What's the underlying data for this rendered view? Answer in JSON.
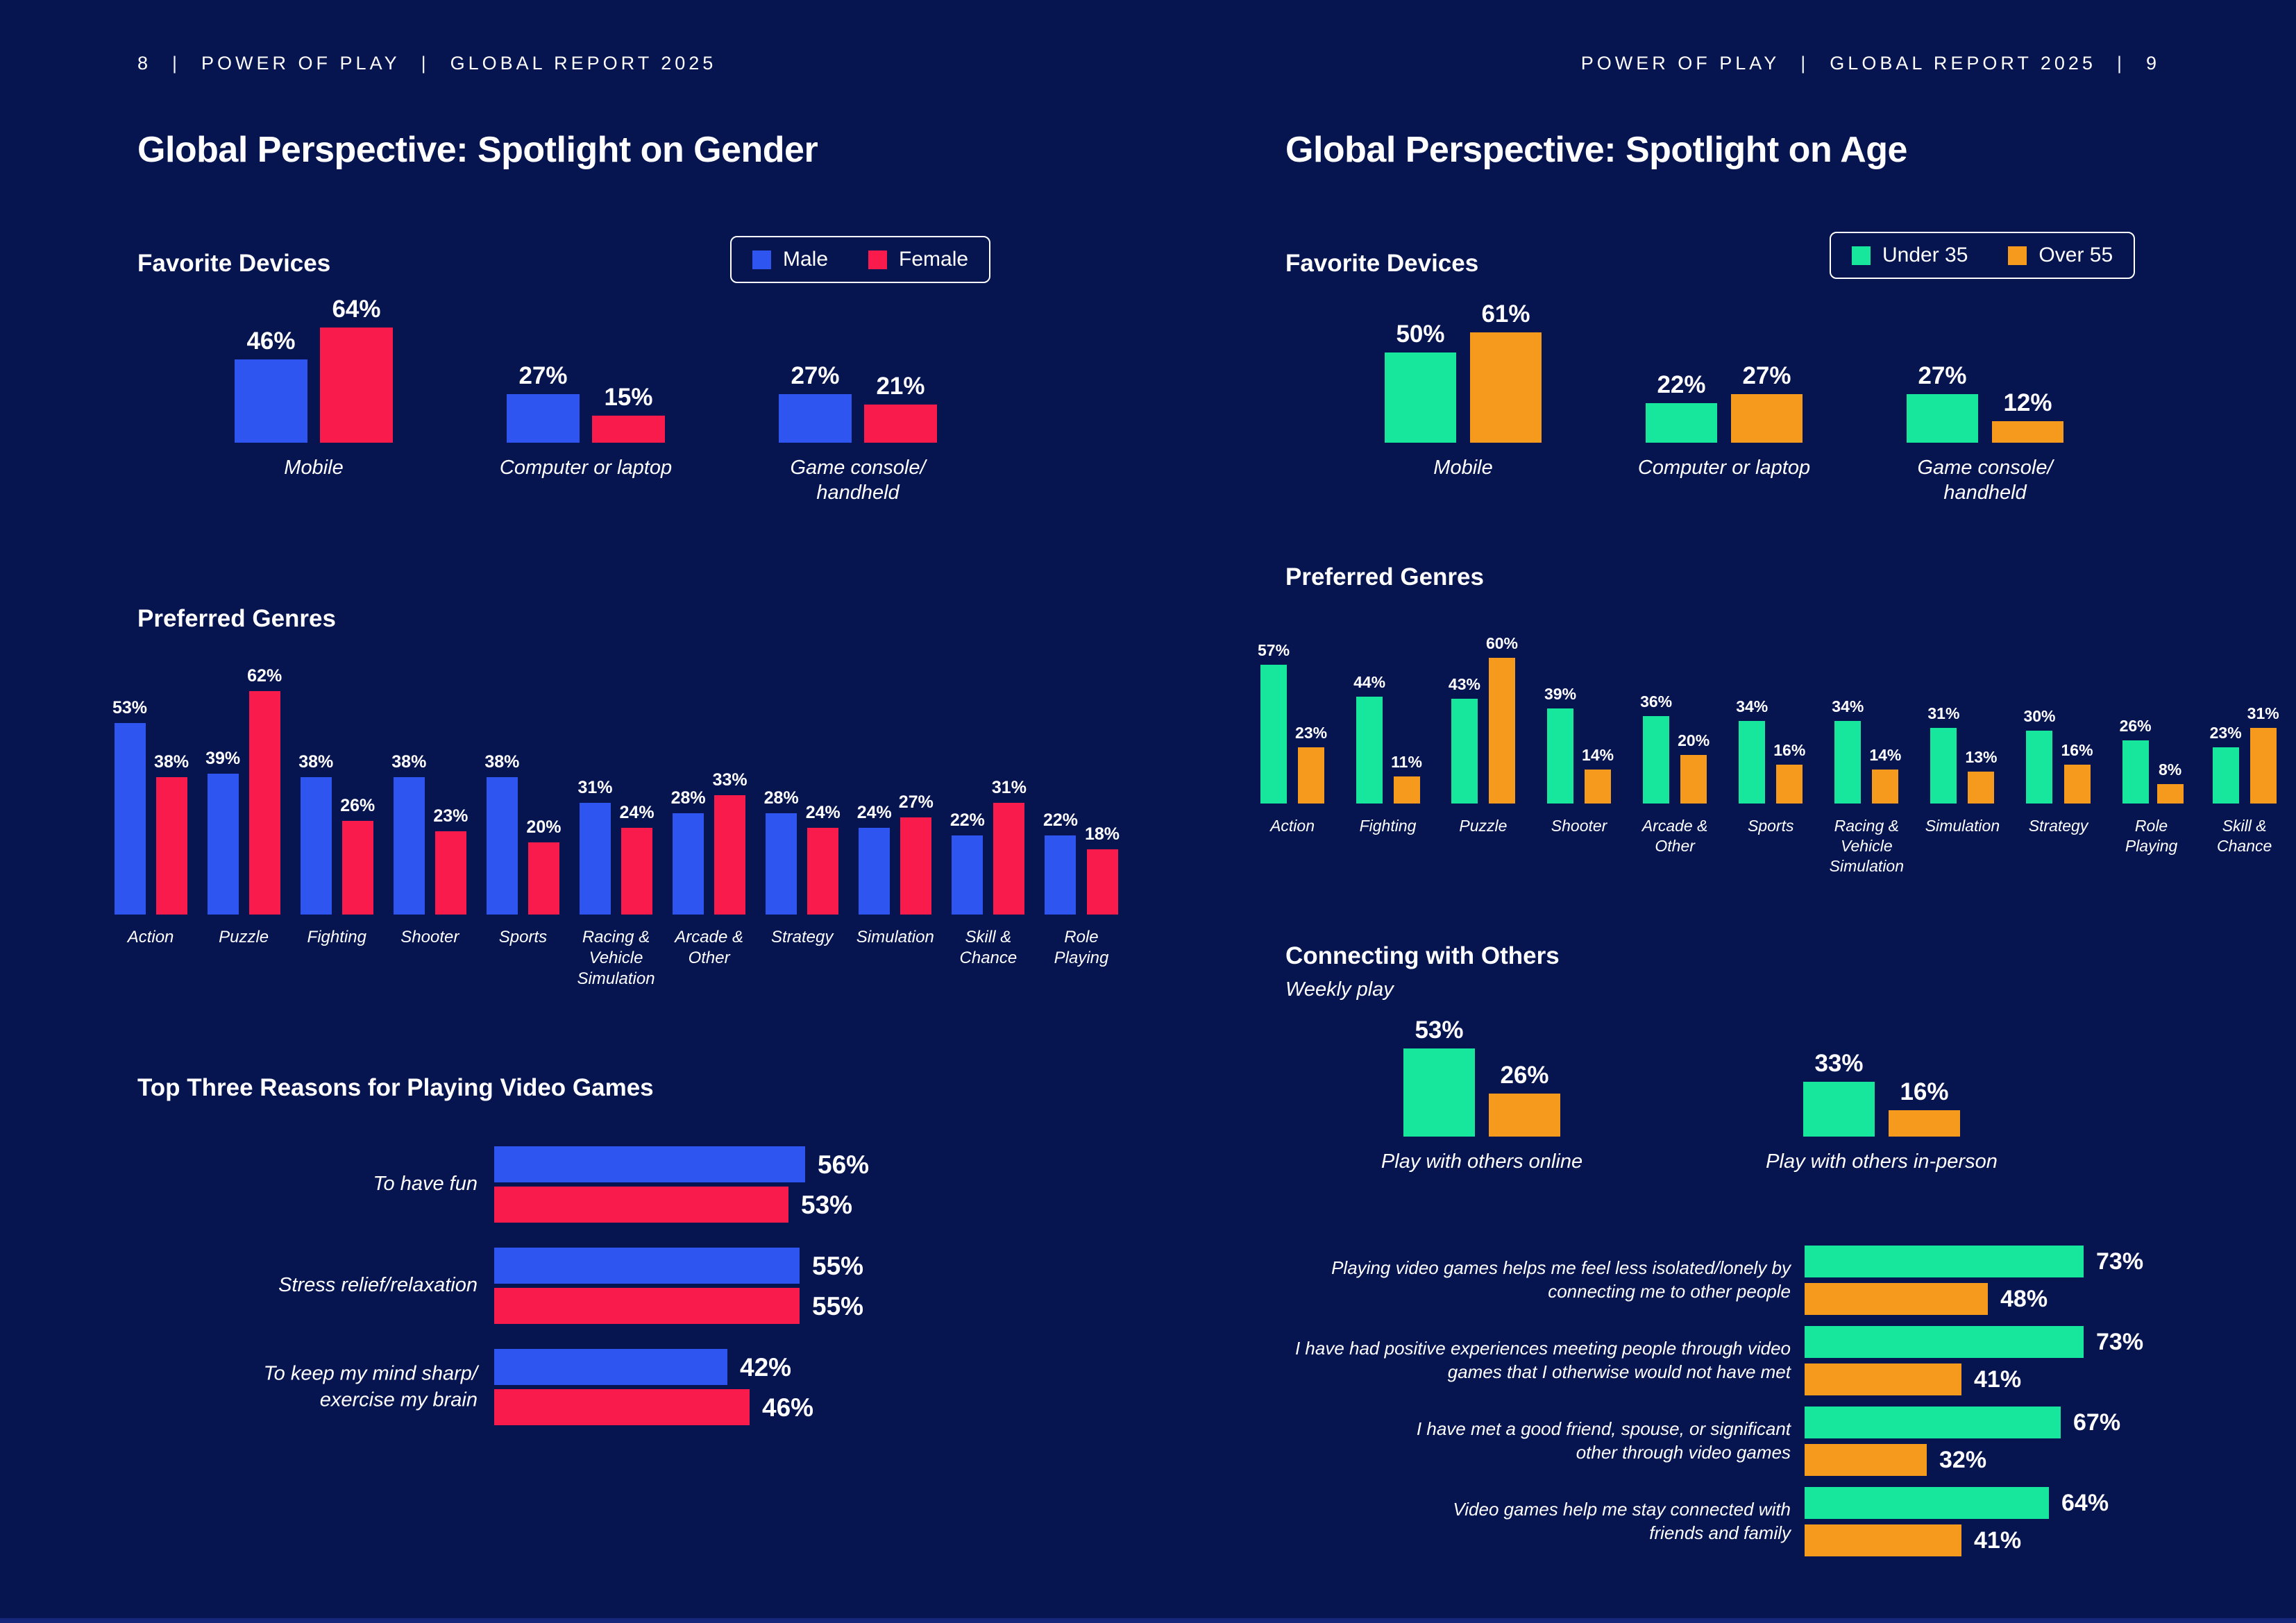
{
  "colors": {
    "background": "#061450",
    "male": "#2e55f0",
    "female": "#fa1b4d",
    "under35": "#16e79c",
    "over55": "#f69a1e",
    "text": "#ffffff"
  },
  "left_page": {
    "header": {
      "page_number": "8",
      "separator": "|",
      "brand": "POWER OF PLAY",
      "report": "GLOBAL REPORT 2025"
    },
    "title": "Global Perspective: Spotlight on Gender",
    "devices_heading": "Favorite Devices",
    "genres_heading": "Preferred Genres",
    "reasons_heading": "Top Three Reasons for Playing Video Games",
    "legend": {
      "items": [
        {
          "label": "Male",
          "color": "#2e55f0"
        },
        {
          "label": "Female",
          "color": "#fa1b4d"
        }
      ]
    }
  },
  "right_page": {
    "header": {
      "brand": "POWER OF PLAY",
      "separator": "|",
      "report": "GLOBAL REPORT 2025",
      "page_number": "9"
    },
    "title": "Global Perspective: Spotlight on Age",
    "devices_heading": "Favorite Devices",
    "genres_heading": "Preferred Genres",
    "connecting_heading": "Connecting with Others",
    "connecting_subtitle": "Weekly play",
    "legend": {
      "items": [
        {
          "label": "Under 35",
          "color": "#16e79c"
        },
        {
          "label": "Over 55",
          "color": "#f69a1e"
        }
      ]
    }
  },
  "chart_data": [
    {
      "id": "gender-devices",
      "type": "bar",
      "orientation": "vertical",
      "title": "Favorite Devices",
      "value_suffix": "%",
      "legend_position": "top-right",
      "categories": [
        "Mobile",
        "Computer or laptop",
        "Game console/\nhandheld"
      ],
      "series": [
        {
          "name": "Male",
          "color": "#2e55f0",
          "values": [
            46,
            27,
            27
          ]
        },
        {
          "name": "Female",
          "color": "#fa1b4d",
          "values": [
            64,
            15,
            21
          ]
        }
      ]
    },
    {
      "id": "gender-genres",
      "type": "bar",
      "orientation": "vertical",
      "title": "Preferred Genres",
      "value_suffix": "%",
      "categories": [
        "Action",
        "Puzzle",
        "Fighting",
        "Shooter",
        "Sports",
        "Racing &\nVehicle\nSimulation",
        "Arcade &\nOther",
        "Strategy",
        "Simulation",
        "Skill &\nChance",
        "Role\nPlaying"
      ],
      "series": [
        {
          "name": "Male",
          "color": "#2e55f0",
          "values": [
            53,
            39,
            38,
            38,
            38,
            31,
            28,
            28,
            24,
            22,
            22
          ]
        },
        {
          "name": "Female",
          "color": "#fa1b4d",
          "values": [
            38,
            62,
            26,
            23,
            20,
            24,
            33,
            24,
            27,
            31,
            18
          ]
        }
      ]
    },
    {
      "id": "gender-reasons",
      "type": "bar",
      "orientation": "horizontal",
      "title": "Top Three Reasons for Playing Video Games",
      "value_suffix": "%",
      "categories": [
        "To have fun",
        "Stress relief/relaxation",
        "To keep my mind sharp/\nexercise my brain"
      ],
      "series": [
        {
          "name": "Male",
          "color": "#2e55f0",
          "values": [
            56,
            55,
            42
          ]
        },
        {
          "name": "Female",
          "color": "#fa1b4d",
          "values": [
            53,
            55,
            46
          ]
        }
      ]
    },
    {
      "id": "age-devices",
      "type": "bar",
      "orientation": "vertical",
      "title": "Favorite Devices",
      "value_suffix": "%",
      "legend_position": "top-right",
      "categories": [
        "Mobile",
        "Computer or laptop",
        "Game console/\nhandheld"
      ],
      "series": [
        {
          "name": "Under 35",
          "color": "#16e79c",
          "values": [
            50,
            22,
            27
          ]
        },
        {
          "name": "Over 55",
          "color": "#f69a1e",
          "values": [
            61,
            27,
            12
          ]
        }
      ]
    },
    {
      "id": "age-genres",
      "type": "bar",
      "orientation": "vertical",
      "title": "Preferred Genres",
      "value_suffix": "%",
      "categories": [
        "Action",
        "Fighting",
        "Puzzle",
        "Shooter",
        "Arcade &\nOther",
        "Sports",
        "Racing &\nVehicle\nSimulation",
        "Simulation",
        "Strategy",
        "Role\nPlaying",
        "Skill &\nChance"
      ],
      "series": [
        {
          "name": "Under 35",
          "color": "#16e79c",
          "values": [
            57,
            44,
            43,
            39,
            36,
            34,
            34,
            31,
            30,
            26,
            23
          ]
        },
        {
          "name": "Over 55",
          "color": "#f69a1e",
          "values": [
            23,
            11,
            60,
            14,
            20,
            16,
            14,
            13,
            16,
            8,
            31
          ]
        }
      ]
    },
    {
      "id": "age-weekly",
      "type": "bar",
      "orientation": "vertical",
      "title": "Connecting with Others",
      "subtitle": "Weekly play",
      "value_suffix": "%",
      "categories": [
        "Play with others online",
        "Play with others in-person"
      ],
      "series": [
        {
          "name": "Under 35",
          "color": "#16e79c",
          "values": [
            53,
            33
          ]
        },
        {
          "name": "Over 55",
          "color": "#f69a1e",
          "values": [
            26,
            16
          ]
        }
      ]
    },
    {
      "id": "age-statements",
      "type": "bar",
      "orientation": "horizontal",
      "title": "Connecting with Others",
      "value_suffix": "%",
      "categories": [
        "Playing video games helps me feel less isolated/lonely by\nconnecting me to other people",
        "I have had positive experiences meeting people through video\ngames that I otherwise would not have met",
        "I have met a good friend, spouse, or significant\nother through video games",
        "Video games help me stay connected with\nfriends and family"
      ],
      "series": [
        {
          "name": "Under 35",
          "color": "#16e79c",
          "values": [
            73,
            73,
            67,
            64
          ]
        },
        {
          "name": "Over 55",
          "color": "#f69a1e",
          "values": [
            48,
            41,
            32,
            41
          ]
        }
      ]
    }
  ]
}
